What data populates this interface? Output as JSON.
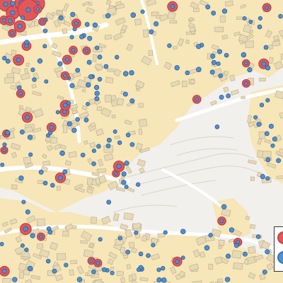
{
  "map": {
    "style": "street-map",
    "palette": {
      "background": "#f2f0ec",
      "land_fill": "#f6e6b8",
      "road": "#ffffff",
      "building_fill": "#e7d9b5",
      "building_stroke": "#b9ab8a",
      "contour": "#d9d4cb",
      "marker_red": "#e1575c",
      "marker_blue": "#4c92d6",
      "marker_outline": "#2d4e7a"
    },
    "legend": {
      "swatches": [
        {
          "name": "red-marker",
          "color": "#e1575c"
        },
        {
          "name": "blue-marker",
          "color": "#4c92d6"
        }
      ]
    }
  }
}
